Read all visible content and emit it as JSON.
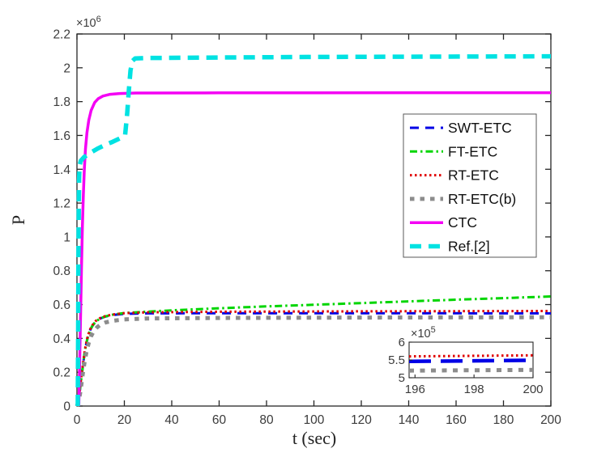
{
  "window": {
    "background": "#ffffff"
  },
  "axis": {
    "frame_color": "#262626",
    "tick_label_color": "#3b3b3b",
    "label_color": "#222222"
  },
  "chart_data": {
    "type": "line",
    "title": "",
    "xlabel": "t (sec)",
    "ylabel": "P",
    "grid": false,
    "xlim": [
      0,
      200
    ],
    "ylim": [
      0,
      2.2
    ],
    "y_unit_multiplier": 1000000,
    "y_exponent": {
      "mantissa": "×10",
      "exp": "6"
    },
    "x_ticks": [
      0,
      20,
      40,
      60,
      80,
      100,
      120,
      140,
      160,
      180,
      200
    ],
    "y_ticks": [
      0,
      0.2,
      0.4,
      0.6,
      0.8,
      1,
      1.2,
      1.4,
      1.6,
      1.8,
      2,
      2.2
    ],
    "legend": {
      "position": "middle-right",
      "border_color": "#5a5a5a",
      "background": "#ffffff",
      "entries": [
        "SWT-ETC",
        "FT-ETC",
        "RT-ETC",
        "RT-ETC(b)",
        "CTC",
        "Ref.[2]"
      ]
    },
    "series": [
      {
        "name": "SWT-ETC",
        "color": "#0000e6",
        "style": "dashed",
        "width": 3,
        "dash": "11 8",
        "points": [
          [
            0,
            0
          ],
          [
            0.6,
            0.03
          ],
          [
            1.2,
            0.09
          ],
          [
            2,
            0.18
          ],
          [
            2.8,
            0.27
          ],
          [
            3.6,
            0.345
          ],
          [
            4.5,
            0.405
          ],
          [
            5.5,
            0.447
          ],
          [
            6.5,
            0.474
          ],
          [
            8,
            0.501
          ],
          [
            10,
            0.519
          ],
          [
            12,
            0.529
          ],
          [
            15,
            0.538
          ],
          [
            20,
            0.545
          ],
          [
            30,
            0.548
          ],
          [
            60,
            0.549
          ],
          [
            120,
            0.549
          ],
          [
            200,
            0.548
          ]
        ]
      },
      {
        "name": "FT-ETC",
        "color": "#00d500",
        "style": "dash-dot",
        "width": 3,
        "dash": "9 4 2.5 4",
        "points": [
          [
            0,
            0
          ],
          [
            0.6,
            0.03
          ],
          [
            1.2,
            0.09
          ],
          [
            2,
            0.18
          ],
          [
            2.8,
            0.27
          ],
          [
            3.6,
            0.345
          ],
          [
            4.5,
            0.405
          ],
          [
            5.5,
            0.447
          ],
          [
            6.5,
            0.474
          ],
          [
            8,
            0.501
          ],
          [
            10,
            0.519
          ],
          [
            12,
            0.53
          ],
          [
            15,
            0.54
          ],
          [
            20,
            0.55
          ],
          [
            30,
            0.558
          ],
          [
            40,
            0.566
          ],
          [
            60,
            0.578
          ],
          [
            80,
            0.589
          ],
          [
            100,
            0.599
          ],
          [
            120,
            0.609
          ],
          [
            140,
            0.619
          ],
          [
            160,
            0.629
          ],
          [
            180,
            0.638
          ],
          [
            200,
            0.648
          ]
        ]
      },
      {
        "name": "RT-ETC",
        "color": "#e00000",
        "style": "dotted",
        "width": 3,
        "dash": "2.5 3.5",
        "points": [
          [
            0,
            0
          ],
          [
            0.6,
            0.032
          ],
          [
            1.2,
            0.095
          ],
          [
            2,
            0.188
          ],
          [
            2.8,
            0.278
          ],
          [
            3.6,
            0.352
          ],
          [
            4.5,
            0.412
          ],
          [
            5.5,
            0.452
          ],
          [
            6.5,
            0.478
          ],
          [
            8,
            0.504
          ],
          [
            10,
            0.522
          ],
          [
            12,
            0.532
          ],
          [
            15,
            0.541
          ],
          [
            20,
            0.549
          ],
          [
            30,
            0.5545
          ],
          [
            60,
            0.5575
          ],
          [
            120,
            0.56
          ],
          [
            200,
            0.562
          ]
        ]
      },
      {
        "name": "RT-ETC(b)",
        "color": "#8c8c8c",
        "style": "dashed",
        "width": 5,
        "dash": "5.5 7",
        "points": [
          [
            0,
            0
          ],
          [
            0.8,
            0.03
          ],
          [
            1.6,
            0.1
          ],
          [
            2.4,
            0.185
          ],
          [
            3.2,
            0.26
          ],
          [
            4,
            0.32
          ],
          [
            5,
            0.375
          ],
          [
            6,
            0.414
          ],
          [
            7,
            0.441
          ],
          [
            8.5,
            0.466
          ],
          [
            10,
            0.482
          ],
          [
            12,
            0.494
          ],
          [
            15,
            0.504
          ],
          [
            20,
            0.512
          ],
          [
            30,
            0.518
          ],
          [
            60,
            0.521
          ],
          [
            120,
            0.523
          ],
          [
            200,
            0.525
          ]
        ]
      },
      {
        "name": "CTC",
        "color": "#f400f4",
        "style": "solid",
        "width": 3.5,
        "dash": "",
        "points": [
          [
            0.8,
            0
          ],
          [
            1.1,
            0.22
          ],
          [
            1.5,
            0.52
          ],
          [
            1.9,
            0.82
          ],
          [
            2.3,
            1.06
          ],
          [
            2.7,
            1.25
          ],
          [
            3.1,
            1.4
          ],
          [
            3.6,
            1.52
          ],
          [
            4.2,
            1.615
          ],
          [
            5,
            1.69
          ],
          [
            6,
            1.748
          ],
          [
            7.5,
            1.795
          ],
          [
            9,
            1.818
          ],
          [
            11,
            1.833
          ],
          [
            14,
            1.843
          ],
          [
            18,
            1.848
          ],
          [
            25,
            1.851
          ],
          [
            60,
            1.852
          ],
          [
            200,
            1.853
          ]
        ]
      },
      {
        "name": "Ref.[2]",
        "color": "#00e2e2",
        "style": "dashed",
        "width": 5.5,
        "dash": "14 9",
        "points": [
          [
            0.35,
            0
          ],
          [
            0.5,
            0.45
          ],
          [
            0.62,
            0.85
          ],
          [
            0.75,
            1.15
          ],
          [
            0.9,
            1.34
          ],
          [
            1.1,
            1.42
          ],
          [
            1.6,
            1.45
          ],
          [
            3,
            1.472
          ],
          [
            6,
            1.5
          ],
          [
            9,
            1.524
          ],
          [
            12,
            1.545
          ],
          [
            15,
            1.562
          ],
          [
            18,
            1.582
          ],
          [
            20.3,
            1.6
          ],
          [
            21.2,
            1.73
          ],
          [
            21.9,
            1.87
          ],
          [
            22.6,
            1.985
          ],
          [
            23.4,
            2.04
          ],
          [
            24.5,
            2.055
          ],
          [
            30,
            2.058
          ],
          [
            60,
            2.061
          ],
          [
            100,
            2.064
          ],
          [
            150,
            2.066
          ],
          [
            200,
            2.068
          ]
        ]
      }
    ],
    "inset": {
      "xlim": [
        195.8,
        200
      ],
      "ylim": [
        5,
        6
      ],
      "y_unit_multiplier": 100000,
      "x_ticks": [
        196,
        198,
        200
      ],
      "y_ticks": [
        5,
        5.5,
        6
      ],
      "y_exponent": {
        "mantissa": "×10",
        "exp": "5"
      },
      "series": [
        {
          "name": "RT-ETC(b)",
          "color": "#8c8c8c",
          "width": 5,
          "dash": "6 7.5",
          "points": [
            [
              195.8,
              5.2
            ],
            [
              200,
              5.22
            ]
          ]
        },
        {
          "name": "SWT-ETC",
          "color": "#0000e6",
          "width": 4.5,
          "dash": "27 12",
          "points": [
            [
              195.8,
              5.46
            ],
            [
              200,
              5.49
            ]
          ]
        },
        {
          "name": "RT-ETC",
          "color": "#e00000",
          "width": 3,
          "dash": "2.5 3.5",
          "points": [
            [
              195.8,
              5.6
            ],
            [
              200,
              5.63
            ]
          ]
        }
      ]
    }
  }
}
